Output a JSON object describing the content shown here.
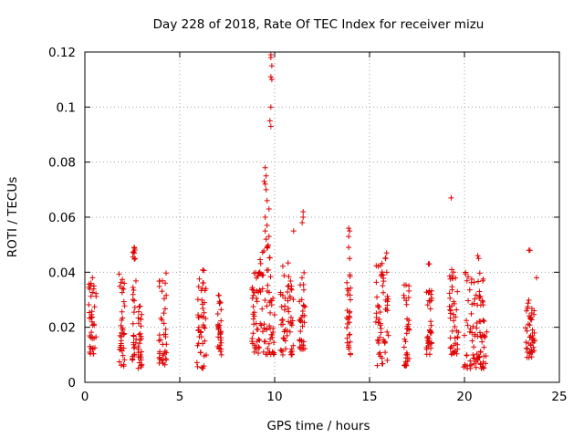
{
  "chart_data": {
    "type": "scatter",
    "title": "Day 228 of 2018, Rate Of TEC Index for receiver mizu",
    "xlabel": "GPS time / hours",
    "ylabel": "ROTI / TECUs",
    "xlim": [
      0,
      25
    ],
    "ylim": [
      0,
      0.12
    ],
    "xticks": [
      0,
      5,
      10,
      15,
      20,
      25
    ],
    "xtick_labels": [
      "0",
      "5",
      "10",
      "15",
      "20",
      "25"
    ],
    "yticks": [
      0,
      0.02,
      0.04,
      0.06,
      0.08,
      0.1,
      0.12
    ],
    "ytick_labels": [
      "0",
      "0.02",
      "0.04",
      "0.06",
      "0.08",
      "0.1",
      "0.12"
    ],
    "grid": true,
    "marker": "+",
    "color": "#e00000",
    "clusters": [
      {
        "x": [
          0.2,
          0.6
        ],
        "y": [
          0.01,
          0.038
        ]
      },
      {
        "x": [
          1.8,
          2.1
        ],
        "y": [
          0.005,
          0.042
        ]
      },
      {
        "x": [
          2.5,
          2.7
        ],
        "y": [
          0.008,
          0.049
        ]
      },
      {
        "x": [
          2.8,
          3.0
        ],
        "y": [
          0.005,
          0.028
        ]
      },
      {
        "x": [
          3.9,
          4.3
        ],
        "y": [
          0.006,
          0.04
        ]
      },
      {
        "x": [
          5.9,
          6.4
        ],
        "y": [
          0.005,
          0.041
        ]
      },
      {
        "x": [
          7.0,
          7.2
        ],
        "y": [
          0.01,
          0.032
        ]
      },
      {
        "x": [
          8.8,
          9.2
        ],
        "y": [
          0.01,
          0.041
        ]
      },
      {
        "x": [
          9.2,
          10.0
        ],
        "y": [
          0.01,
          0.05
        ]
      },
      {
        "x": [
          10.3,
          11.0
        ],
        "y": [
          0.01,
          0.045
        ]
      },
      {
        "x": [
          11.3,
          11.6
        ],
        "y": [
          0.012,
          0.04
        ]
      },
      {
        "x": [
          13.8,
          14.0
        ],
        "y": [
          0.01,
          0.04
        ]
      },
      {
        "x": [
          15.3,
          16.0
        ],
        "y": [
          0.006,
          0.047
        ]
      },
      {
        "x": [
          16.8,
          17.1
        ],
        "y": [
          0.006,
          0.036
        ]
      },
      {
        "x": [
          18.0,
          18.3
        ],
        "y": [
          0.01,
          0.034
        ]
      },
      {
        "x": [
          19.2,
          19.7
        ],
        "y": [
          0.01,
          0.041
        ]
      },
      {
        "x": [
          19.9,
          21.2
        ],
        "y": [
          0.005,
          0.04
        ]
      },
      {
        "x": [
          23.2,
          23.7
        ],
        "y": [
          0.009,
          0.03
        ]
      }
    ],
    "highlights": [
      {
        "x": 9.8,
        "y": 0.119
      },
      {
        "x": 9.8,
        "y": 0.118
      },
      {
        "x": 9.85,
        "y": 0.115
      },
      {
        "x": 9.8,
        "y": 0.111
      },
      {
        "x": 9.85,
        "y": 0.11
      },
      {
        "x": 9.8,
        "y": 0.1
      },
      {
        "x": 9.75,
        "y": 0.095
      },
      {
        "x": 9.8,
        "y": 0.093
      },
      {
        "x": 9.5,
        "y": 0.078
      },
      {
        "x": 9.55,
        "y": 0.075
      },
      {
        "x": 9.45,
        "y": 0.073
      },
      {
        "x": 9.5,
        "y": 0.072
      },
      {
        "x": 9.55,
        "y": 0.07
      },
      {
        "x": 9.6,
        "y": 0.066
      },
      {
        "x": 9.7,
        "y": 0.063
      },
      {
        "x": 9.5,
        "y": 0.06
      },
      {
        "x": 9.6,
        "y": 0.057
      },
      {
        "x": 9.5,
        "y": 0.055
      },
      {
        "x": 9.7,
        "y": 0.053
      },
      {
        "x": 9.55,
        "y": 0.052
      },
      {
        "x": 9.6,
        "y": 0.049
      },
      {
        "x": 11.5,
        "y": 0.062
      },
      {
        "x": 11.5,
        "y": 0.06
      },
      {
        "x": 11.45,
        "y": 0.058
      },
      {
        "x": 11.0,
        "y": 0.055
      },
      {
        "x": 13.9,
        "y": 0.056
      },
      {
        "x": 13.95,
        "y": 0.055
      },
      {
        "x": 13.9,
        "y": 0.053
      },
      {
        "x": 13.9,
        "y": 0.049
      },
      {
        "x": 13.95,
        "y": 0.045
      },
      {
        "x": 19.3,
        "y": 0.067
      },
      {
        "x": 23.4,
        "y": 0.048
      },
      {
        "x": 23.45,
        "y": 0.048
      },
      {
        "x": 23.8,
        "y": 0.038
      },
      {
        "x": 18.1,
        "y": 0.043
      },
      {
        "x": 18.15,
        "y": 0.043
      },
      {
        "x": 20.7,
        "y": 0.046
      },
      {
        "x": 20.75,
        "y": 0.045
      },
      {
        "x": 2.6,
        "y": 0.049
      },
      {
        "x": 2.6,
        "y": 0.047
      },
      {
        "x": 2.65,
        "y": 0.045
      },
      {
        "x": 0.4,
        "y": 0.038
      },
      {
        "x": 15.9,
        "y": 0.047
      },
      {
        "x": 15.85,
        "y": 0.045
      }
    ]
  }
}
